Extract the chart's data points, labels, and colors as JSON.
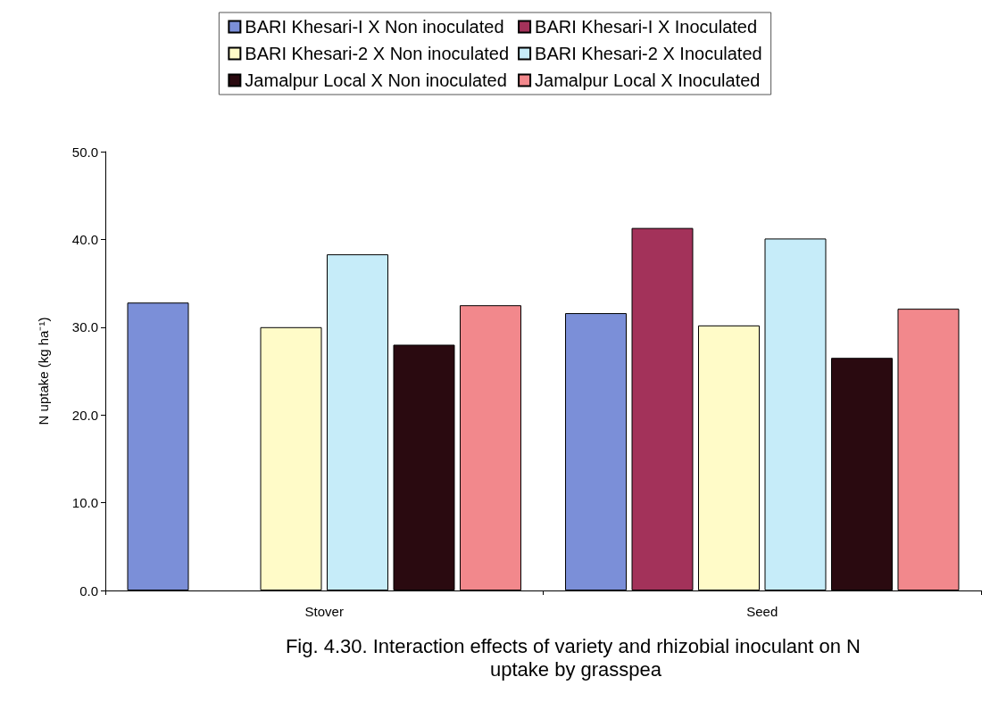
{
  "chart_data": {
    "type": "bar",
    "ylabel": "N uptake (kg ha⁻¹)",
    "categories": [
      "Stover",
      "Seed"
    ],
    "series": [
      {
        "name": "BARI Khesari-I X Non inoculated",
        "color": "#7b8fd8",
        "values": [
          32.8,
          31.6
        ]
      },
      {
        "name": "BARI Khesari-I X Inoculated",
        "color": "#a3325a",
        "values": [
          null,
          41.3
        ]
      },
      {
        "name": "BARI Khesari-2 X Non inoculated",
        "color": "#fffbc8",
        "values": [
          30.0,
          30.2
        ]
      },
      {
        "name": "BARI Khesari-2 X Inoculated",
        "color": "#c6ecf9",
        "values": [
          38.3,
          40.1
        ]
      },
      {
        "name": "Jamalpur Local X Non inoculated",
        "color": "#2a0a10",
        "values": [
          28.0,
          26.5
        ]
      },
      {
        "name": "Jamalpur Local X Inoculated",
        "color": "#f2888c",
        "values": [
          32.5,
          32.1
        ]
      }
    ],
    "ylim": [
      0,
      50
    ],
    "yticks": [
      {
        "value": 0,
        "label": "0.0"
      },
      {
        "value": 10,
        "label": "10.0"
      },
      {
        "value": 20,
        "label": "20.0"
      },
      {
        "value": 30,
        "label": "30.0"
      },
      {
        "value": 40,
        "label": "40.0"
      },
      {
        "value": 50,
        "label": "50.0"
      }
    ],
    "grid": false,
    "legend": "top",
    "annotations": [
      "Fig. 4.30. Interaction effects of variety and rhizobial inoculant on N uptake by grasspea"
    ]
  }
}
